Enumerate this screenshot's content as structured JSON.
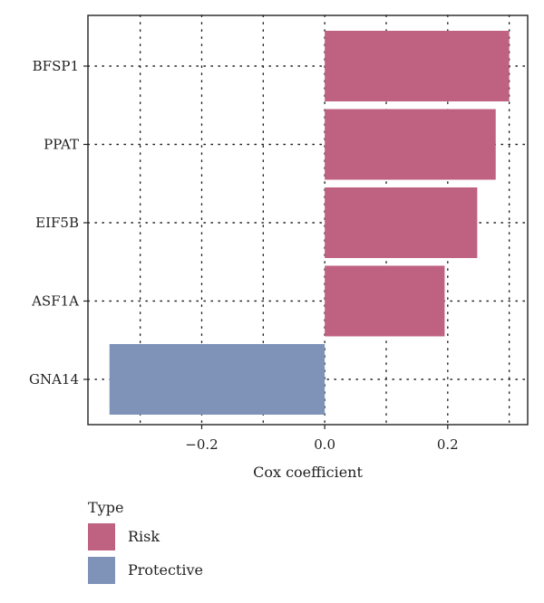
{
  "chart_data": {
    "type": "bar",
    "orientation": "horizontal",
    "categories": [
      "BFSP1",
      "PPAT",
      "EIF5B",
      "ASF1A",
      "GNA14"
    ],
    "values": [
      0.3,
      0.278,
      0.248,
      0.195,
      -0.35
    ],
    "types": [
      "Risk",
      "Risk",
      "Risk",
      "Risk",
      "Protective"
    ],
    "xlabel": "Cox coefficient",
    "ylabel": "",
    "xlim": [
      -0.385,
      0.33
    ],
    "xticks": [
      -0.2,
      0.0,
      0.2
    ],
    "xtick_labels": [
      "−0.2",
      "0.0",
      "0.2"
    ],
    "grid": true,
    "grid_style": "dotted",
    "legend": {
      "title": "Type",
      "placement": "bottom-left",
      "entries": [
        {
          "label": "Risk",
          "color": "#bf6281"
        },
        {
          "label": "Protective",
          "color": "#7f93b9"
        }
      ]
    },
    "colors": {
      "Risk": "#bf6281",
      "Protective": "#7f93b9"
    }
  }
}
